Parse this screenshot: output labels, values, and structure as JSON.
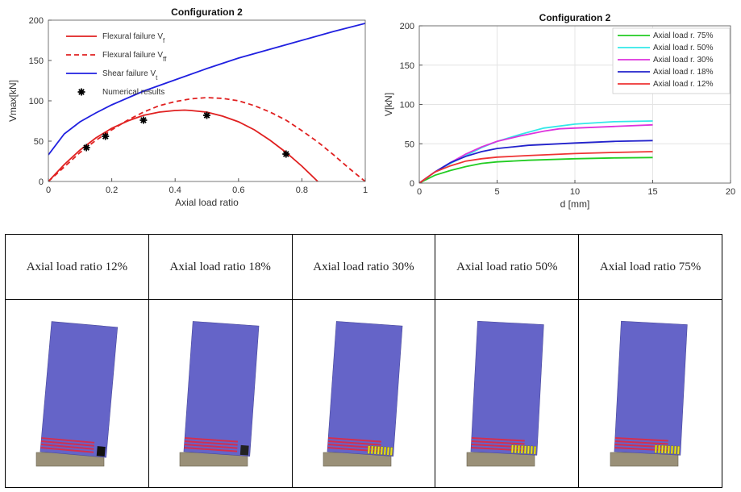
{
  "chart_data": [
    {
      "type": "line",
      "title": "Configuration 2",
      "xlabel": "Axial load ratio",
      "ylabel": "Vmax[kN]",
      "xlim": [
        0,
        1
      ],
      "ylim": [
        0,
        200
      ],
      "xticks": [
        0,
        0.2,
        0.4,
        0.6,
        0.8,
        1
      ],
      "xtick_labels": [
        "0",
        "0.2",
        "0.4",
        "0.6",
        "0.8",
        "1"
      ],
      "yticks": [
        0,
        50,
        100,
        150,
        200
      ],
      "ytick_labels": [
        "0",
        "50",
        "100",
        "150",
        "200"
      ],
      "legend_position": "top-left",
      "series": [
        {
          "name": "Flexural failure V",
          "name_sub": "f",
          "color": "#e02020",
          "dash": "solid",
          "x": [
            0,
            0.05,
            0.1,
            0.15,
            0.2,
            0.25,
            0.3,
            0.35,
            0.4,
            0.43,
            0.45,
            0.5,
            0.55,
            0.6,
            0.65,
            0.7,
            0.75,
            0.8,
            0.85
          ],
          "y": [
            0,
            21,
            39,
            54,
            66,
            75,
            82,
            86,
            88,
            88.5,
            88,
            86,
            81,
            74,
            64,
            51,
            36,
            19,
            0
          ]
        },
        {
          "name": "Flexural failure V",
          "name_sub": "ff",
          "color": "#e02020",
          "dash": "dashed",
          "x": [
            0,
            0.05,
            0.1,
            0.15,
            0.2,
            0.25,
            0.3,
            0.35,
            0.4,
            0.45,
            0.5,
            0.55,
            0.6,
            0.65,
            0.7,
            0.75,
            0.8,
            0.85,
            0.9,
            0.95,
            1.0
          ],
          "y": [
            0,
            18,
            36,
            51,
            64,
            76,
            86,
            94,
            99,
            102.5,
            104,
            103,
            100,
            94,
            86,
            76,
            63,
            49,
            33,
            16,
            0
          ]
        },
        {
          "name": "Shear failure V",
          "name_sub": "t",
          "color": "#2020e0",
          "dash": "solid",
          "x": [
            0,
            0.05,
            0.1,
            0.15,
            0.2,
            0.3,
            0.4,
            0.5,
            0.6,
            0.7,
            0.8,
            0.9,
            1.0
          ],
          "y": [
            33,
            59,
            74,
            85,
            95,
            112,
            126,
            140,
            153,
            164,
            175,
            186,
            196
          ]
        },
        {
          "name": "Numerical results",
          "color": "#000000",
          "marker": "asterisk",
          "x": [
            0.12,
            0.18,
            0.3,
            0.5,
            0.75
          ],
          "y": [
            42,
            56,
            76,
            82,
            34
          ]
        }
      ]
    },
    {
      "type": "line",
      "title": "Configuration 2",
      "xlabel": "d [mm]",
      "ylabel": "V[kN]",
      "xlim": [
        0,
        20
      ],
      "ylim": [
        0,
        200
      ],
      "xticks": [
        0,
        5,
        10,
        15,
        20
      ],
      "xtick_labels": [
        "0",
        "5",
        "10",
        "15",
        "20"
      ],
      "yticks": [
        0,
        50,
        100,
        150,
        200
      ],
      "ytick_labels": [
        "0",
        "50",
        "100",
        "150",
        "200"
      ],
      "grid": true,
      "legend_position": "top-right",
      "series": [
        {
          "name": "Axial load r. 75%",
          "color": "#22cc22",
          "x": [
            0,
            1,
            2,
            3,
            4,
            5,
            7,
            10,
            12.5,
            15
          ],
          "y": [
            0,
            10,
            16,
            21,
            25,
            27,
            29,
            31,
            32,
            32.5
          ]
        },
        {
          "name": "Axial load r. 50%",
          "color": "#33e8e8",
          "x": [
            0,
            1,
            2,
            3,
            4,
            5,
            6.5,
            8,
            10,
            12.5,
            15
          ],
          "y": [
            0,
            14,
            25,
            35,
            45,
            53,
            62,
            70,
            75,
            78,
            79
          ]
        },
        {
          "name": "Axial load r. 30%",
          "color": "#dd33dd",
          "x": [
            0,
            1,
            2,
            3,
            4,
            5,
            6.5,
            8,
            9,
            10,
            12.5,
            15
          ],
          "y": [
            0,
            14,
            26,
            37,
            46,
            53,
            60,
            66,
            69,
            70,
            72,
            74
          ]
        },
        {
          "name": "Axial load r. 18%",
          "color": "#2222cc",
          "x": [
            0,
            1,
            2,
            3,
            4,
            5,
            7,
            10,
            12.5,
            15
          ],
          "y": [
            0,
            14,
            26,
            34,
            40,
            44,
            48,
            51,
            53,
            54
          ]
        },
        {
          "name": "Axial load r. 12%",
          "color": "#ee3333",
          "x": [
            0,
            1,
            2,
            3,
            4,
            5,
            7,
            10,
            12.5,
            15
          ],
          "y": [
            0,
            14,
            22,
            28,
            31,
            33,
            35,
            37.5,
            39,
            40
          ]
        }
      ]
    }
  ],
  "table": {
    "headers": [
      "Axial load ratio 12%",
      "Axial load ratio 18%",
      "Axial load ratio 30%",
      "Axial load ratio 50%",
      "Axial load ratio 75%"
    ],
    "simulations": [
      {
        "tilt_deg": 5,
        "damage": "crush",
        "colors": {
          "wall": "#6564c8",
          "base": "#9a9078",
          "cracks": "#d32f4f",
          "crush": "#111111"
        }
      },
      {
        "tilt_deg": 4,
        "damage": "crush",
        "colors": {
          "wall": "#6564c8",
          "base": "#9a9078",
          "cracks": "#d32f4f",
          "crush": "#222222"
        }
      },
      {
        "tilt_deg": 4,
        "damage": "yellow",
        "colors": {
          "wall": "#6564c8",
          "base": "#9a9078",
          "cracks": "#d32f4f",
          "crush": "#e8e020"
        }
      },
      {
        "tilt_deg": 3,
        "damage": "yellow",
        "colors": {
          "wall": "#6564c8",
          "base": "#9a9078",
          "cracks": "#d32f4f",
          "crush": "#e8e020"
        }
      },
      {
        "tilt_deg": 3,
        "damage": "yellow",
        "colors": {
          "wall": "#6564c8",
          "base": "#9a9078",
          "cracks": "#d32f4f",
          "crush": "#e8e020"
        }
      }
    ]
  }
}
